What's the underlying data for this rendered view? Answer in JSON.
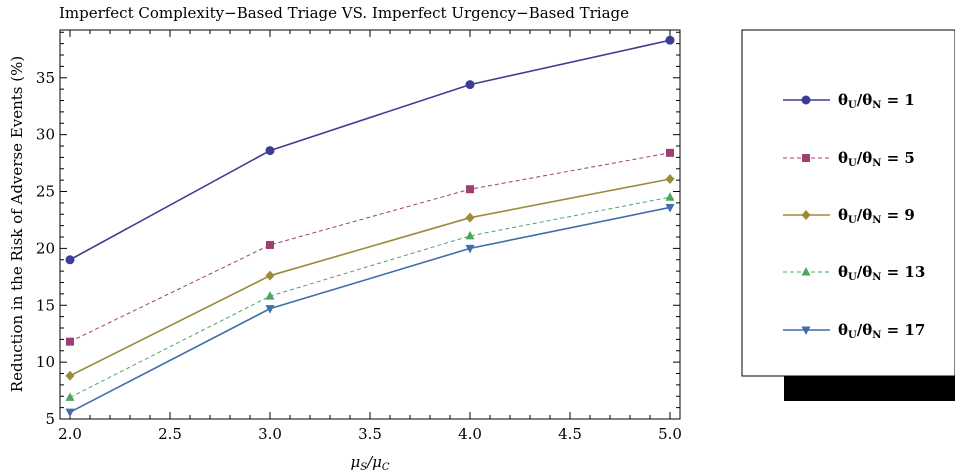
{
  "chart_data": {
    "type": "line",
    "title": "Imperfect Complexity−Based Triage VS. Imperfect Urgency−Based Triage",
    "xlabel": "μS/μC",
    "xlabel_main": "μ",
    "xlabel_sub1": "S",
    "xlabel_slash": "/μ",
    "xlabel_sub2": "C",
    "ylabel": "Reduction in the Risk of Adverse Events (%)",
    "x": [
      2.0,
      3.0,
      4.0,
      5.0
    ],
    "xlim": [
      1.95,
      5.05
    ],
    "ylim": [
      5,
      39.2
    ],
    "xticks": [
      2.0,
      2.5,
      3.0,
      3.5,
      4.0,
      4.5,
      5.0
    ],
    "xtick_labels": [
      "2.0",
      "2.5",
      "3.0",
      "3.5",
      "4.0",
      "4.5",
      "5.0"
    ],
    "yticks": [
      5,
      10,
      15,
      20,
      25,
      30,
      35
    ],
    "ytick_labels": [
      "5",
      "10",
      "15",
      "20",
      "25",
      "30",
      "35"
    ],
    "grid": false,
    "legend_position": "right",
    "series": [
      {
        "name": "θU/θN = 1",
        "label_main": "θ",
        "sub1": "U",
        "mid": "/θ",
        "sub2": "N",
        "tail": " = 1",
        "values": [
          19.0,
          28.6,
          34.4,
          38.3
        ],
        "color": "#3d3d96",
        "marker": "circle",
        "dashed": false
      },
      {
        "name": "θU/θN = 5",
        "label_main": "θ",
        "sub1": "U",
        "mid": "/θ",
        "sub2": "N",
        "tail": " = 5",
        "values": [
          11.8,
          20.3,
          25.2,
          28.4
        ],
        "color": "#9b3f75",
        "marker": "square",
        "dashed": true
      },
      {
        "name": "θU/θN = 9",
        "label_main": "θ",
        "sub1": "U",
        "mid": "/θ",
        "sub2": "N",
        "tail": " = 9",
        "values": [
          8.8,
          17.6,
          22.7,
          26.1
        ],
        "color": "#9c8c3a",
        "marker": "diamond",
        "dashed": false
      },
      {
        "name": "θU/θN = 13",
        "label_main": "θ",
        "sub1": "U",
        "mid": "/θ",
        "sub2": "N",
        "tail": " = 13",
        "values": [
          6.9,
          15.8,
          21.1,
          24.5
        ],
        "color": "#4da65e",
        "marker": "triangle-up",
        "dashed": true
      },
      {
        "name": "θU/θN = 17",
        "label_main": "θ",
        "sub1": "U",
        "mid": "/θ",
        "sub2": "N",
        "tail": " = 17",
        "values": [
          5.6,
          14.7,
          20.0,
          23.6
        ],
        "color": "#3f6ea8",
        "marker": "triangle-down",
        "dashed": false
      }
    ]
  }
}
